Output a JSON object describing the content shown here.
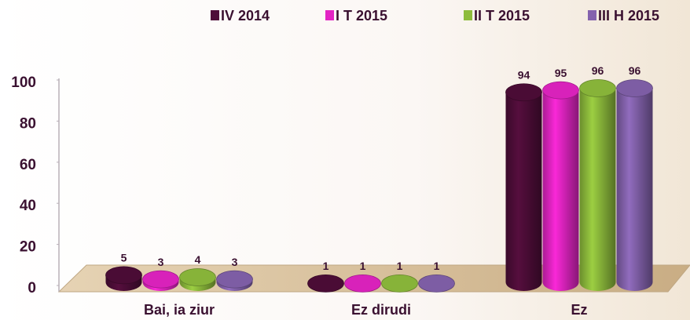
{
  "chart_data": {
    "type": "bar3d",
    "categories": [
      "Bai, ia ziur",
      "Ez dirudi",
      "Ez"
    ],
    "series": [
      {
        "name": "IV 2014",
        "color": "#4e0d38",
        "values": [
          5,
          1,
          94
        ]
      },
      {
        "name": "I T 2015",
        "color": "#e324c4",
        "values": [
          3,
          1,
          95
        ]
      },
      {
        "name": "II T 2015",
        "color": "#8ebc3c",
        "values": [
          4,
          1,
          96
        ]
      },
      {
        "name": "III H 2015",
        "color": "#8462ad",
        "values": [
          3,
          1,
          96
        ]
      }
    ],
    "ylim": [
      0,
      100
    ],
    "yticks": [
      0,
      20,
      40,
      60,
      80,
      100
    ],
    "legend": "top"
  }
}
